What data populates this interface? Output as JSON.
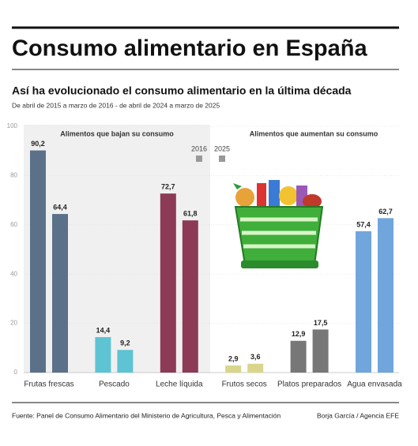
{
  "chart_data": {
    "type": "bar",
    "title": "Consumo alimentario en España",
    "subtitle": "Así ha evolucionado el consumo alimentario en la última década",
    "period": "De abril de 2015 a marzo de 2016 - de abril de 2024 a marzo de 2025",
    "categories": [
      "Frutas frescas",
      "Pescado",
      "Leche líquida",
      "Frutos secos",
      "Platos preparados",
      "Agua envasada"
    ],
    "category_colors": [
      "#5a7189",
      "#5ec3d2",
      "#8c3a55",
      "#d9d68c",
      "#777777",
      "#70a6dc"
    ],
    "groups": [
      "Alimentos que bajan su consumo",
      "Alimentos que aumentan su consumo"
    ],
    "series": [
      {
        "name": "2016",
        "color": "#999999",
        "values": [
          90.2,
          14.4,
          72.7,
          2.9,
          12.9,
          57.4
        ],
        "value_labels": [
          "90,2",
          "14,4",
          "72,7",
          "2,9",
          "12,9",
          "57,4"
        ]
      },
      {
        "name": "2025",
        "color": "#999999",
        "values": [
          64.4,
          9.2,
          61.8,
          3.6,
          17.5,
          62.7
        ],
        "value_labels": [
          "64,4",
          "9,2",
          "61,8",
          "3,6",
          "17,5",
          "62,7"
        ]
      }
    ],
    "ylim": [
      0,
      100
    ],
    "yticks": [
      0,
      20,
      40,
      60,
      80,
      100
    ],
    "grid": true,
    "source": "Fuente: Panel de Consumo Alimentario del Ministerio de Agricultura, Pesca y Alimentación",
    "credit": "Borja García / Agencia EFE"
  }
}
